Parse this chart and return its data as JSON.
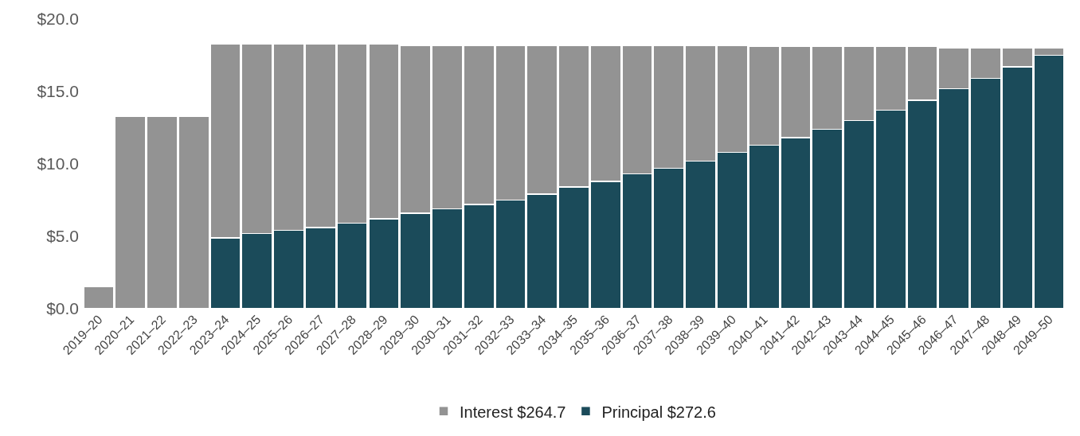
{
  "chart_data": {
    "type": "bar",
    "stacked": true,
    "categories": [
      "2019–20",
      "2020–21",
      "2021–22",
      "2022–23",
      "2023–24",
      "2024–25",
      "2025–26",
      "2026–27",
      "2027–28",
      "2028–29",
      "2029–30",
      "2030–31",
      "2031–32",
      "2032–33",
      "2033–34",
      "2034–35",
      "2035–36",
      "2036–37",
      "2037–38",
      "2038–39",
      "2039–40",
      "2040–41",
      "2041–42",
      "2042–43",
      "2043–44",
      "2044–45",
      "2045–46",
      "2046–47",
      "2047–48",
      "2048–49",
      "2049–50"
    ],
    "series": [
      {
        "name": "Principal $272.6",
        "color": "#1b4b5a",
        "values": [
          null,
          null,
          null,
          null,
          4.9,
          5.2,
          5.4,
          5.6,
          5.9,
          6.2,
          6.6,
          6.9,
          7.2,
          7.5,
          7.9,
          8.4,
          8.8,
          9.3,
          9.7,
          10.2,
          10.8,
          11.3,
          11.8,
          12.4,
          13.0,
          13.7,
          14.4,
          15.2,
          15.9,
          16.7,
          17.5
        ]
      },
      {
        "name": "Interest $264.7",
        "color": "#939393",
        "values": [
          1.5,
          13.3,
          13.3,
          13.3,
          13.4,
          13.1,
          12.9,
          12.7,
          12.4,
          12.1,
          11.6,
          11.3,
          11.0,
          10.7,
          10.3,
          9.8,
          9.4,
          8.9,
          8.5,
          8.0,
          7.4,
          6.8,
          6.3,
          5.7,
          5.1,
          4.4,
          3.7,
          2.8,
          2.1,
          1.3,
          0.5
        ]
      }
    ],
    "ylim": [
      0,
      20
    ],
    "yticks": [
      {
        "value": 0,
        "label": "$0.0"
      },
      {
        "value": 5,
        "label": "$5.0"
      },
      {
        "value": 10,
        "label": "$10.0"
      },
      {
        "value": 15,
        "label": "$15.0"
      },
      {
        "value": 20,
        "label": "$20.0"
      }
    ],
    "grid": false,
    "legend": "bottom"
  }
}
